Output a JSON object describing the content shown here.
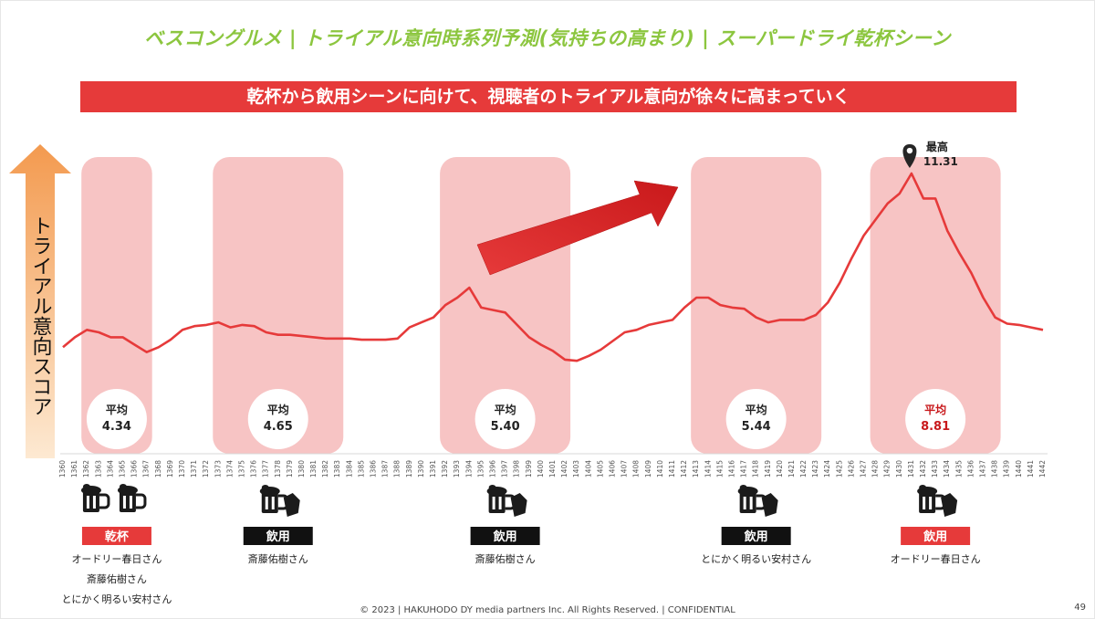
{
  "title": "ベスコングルメ | トライアル意向時系列予測(気持ちの高まり) | スーパードライ乾杯シーン",
  "banner": "乾杯から飲用シーンに向けて、視聴者のトライアル意向が徐々に高まっていく",
  "footer": "© 2023 | HAKUHODO DY media partners Inc. All Rights Reserved. | CONFIDENTIAL",
  "page_number": "49",
  "colors": {
    "accent_red": "#e63a3a",
    "title_green": "#8cc63f",
    "band_pink": "#f7c4c4"
  },
  "chart_data": {
    "type": "line",
    "ylabel": "トライアル意向スコア",
    "x": [
      1360,
      1361,
      1362,
      1363,
      1364,
      1365,
      1366,
      1367,
      1368,
      1369,
      1370,
      1371,
      1372,
      1373,
      1374,
      1375,
      1376,
      1377,
      1378,
      1379,
      1380,
      1381,
      1382,
      1383,
      1384,
      1385,
      1386,
      1387,
      1388,
      1389,
      1390,
      1391,
      1392,
      1393,
      1394,
      1395,
      1396,
      1397,
      1398,
      1399,
      1400,
      1401,
      1402,
      1403,
      1404,
      1405,
      1406,
      1407,
      1408,
      1409,
      1410,
      1411,
      1412,
      1413,
      1414,
      1415,
      1416,
      1417,
      1418,
      1419,
      1420,
      1421,
      1422,
      1423,
      1424,
      1425,
      1426,
      1427,
      1428,
      1429,
      1430,
      1431,
      1432,
      1433,
      1434,
      1435,
      1436,
      1437,
      1438,
      1439,
      1440,
      1441,
      1442
    ],
    "series": [
      {
        "values": [
          4.3,
          4.7,
          5.0,
          4.9,
          4.7,
          4.7,
          4.4,
          4.1,
          4.3,
          4.6,
          5.0,
          5.15,
          5.2,
          5.3,
          5.1,
          5.2,
          5.15,
          4.9,
          4.8,
          4.8,
          4.75,
          4.7,
          4.65,
          4.65,
          4.65,
          4.6,
          4.6,
          4.6,
          4.65,
          5.1,
          5.3,
          5.5,
          6.0,
          6.3,
          6.7,
          5.9,
          5.8,
          5.7,
          5.2,
          4.7,
          4.4,
          4.15,
          3.8,
          3.75,
          3.95,
          4.2,
          4.55,
          4.9,
          5.0,
          5.2,
          5.3,
          5.4,
          5.9,
          6.3,
          6.3,
          6.0,
          5.9,
          5.85,
          5.5,
          5.3,
          5.4,
          5.4,
          5.4,
          5.6,
          6.1,
          6.9,
          7.9,
          8.8,
          9.45,
          10.1,
          10.5,
          11.31,
          10.3,
          10.3,
          9.0,
          8.1,
          7.3,
          6.3,
          5.5,
          5.25,
          5.2,
          5.1,
          5.0
        ]
      }
    ],
    "ylim": [
      0,
      14
    ],
    "peak": {
      "label": "最高",
      "value_text": "11.31",
      "x": 1431
    },
    "bands": [
      {
        "from": 1362,
        "to": 1367,
        "avg_label": "平均",
        "avg_value": "4.34",
        "highlight": false,
        "tag": "乾杯",
        "tag_color": "#e63a3a",
        "icon": "two-beer-mugs-icon",
        "names": [
          "オードリー春日さん",
          "斎藤佑樹さん",
          "とにかく明るい安村さん"
        ]
      },
      {
        "from": 1373,
        "to": 1383,
        "avg_label": "平均",
        "avg_value": "4.65",
        "highlight": false,
        "tag": "飲用",
        "tag_color": "#111111",
        "icon": "beer-mug-hand-icon",
        "names": [
          "斎藤佑樹さん"
        ]
      },
      {
        "from": 1392,
        "to": 1402,
        "avg_label": "平均",
        "avg_value": "5.40",
        "highlight": false,
        "tag": "飲用",
        "tag_color": "#111111",
        "icon": "beer-mug-hand-icon",
        "names": [
          "斎藤佑樹さん"
        ]
      },
      {
        "from": 1413,
        "to": 1423,
        "avg_label": "平均",
        "avg_value": "5.44",
        "highlight": false,
        "tag": "飲用",
        "tag_color": "#111111",
        "icon": "beer-mug-hand-icon",
        "names": [
          "とにかく明るい安村さん"
        ]
      },
      {
        "from": 1428,
        "to": 1438,
        "avg_label": "平均",
        "avg_value": "8.81",
        "highlight": true,
        "tag": "飲用",
        "tag_color": "#e63a3a",
        "icon": "beer-mug-hand-icon",
        "names": [
          "オードリー春日さん"
        ]
      }
    ]
  }
}
